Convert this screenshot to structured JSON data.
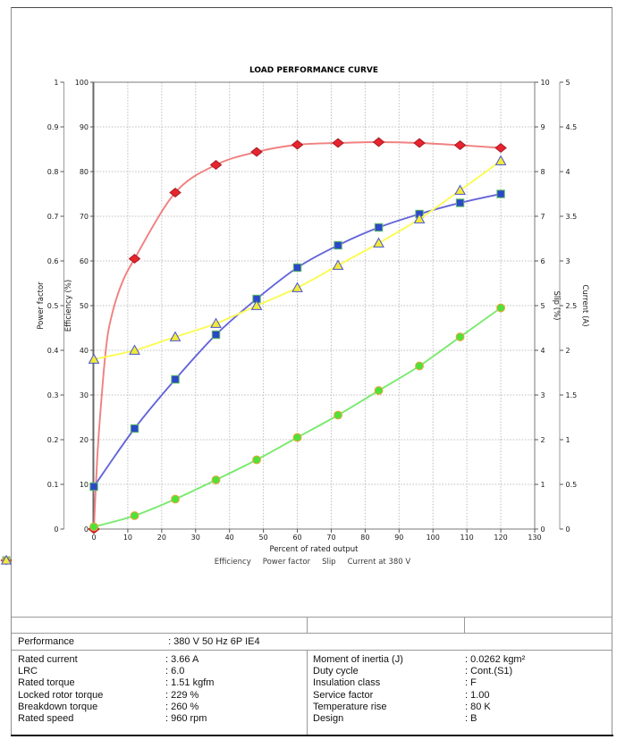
{
  "chart_data": {
    "type": "line",
    "title": "LOAD PERFORMANCE CURVE",
    "xlabel": "Percent of rated output",
    "grid": true,
    "legend_position": "bottom",
    "x": [
      0,
      12,
      24,
      36,
      48,
      60,
      72,
      84,
      96,
      108,
      120
    ],
    "axes": {
      "x": {
        "range": [
          0,
          130
        ],
        "ticks": [
          "0",
          "10",
          "20",
          "30",
          "40",
          "50",
          "60",
          "70",
          "80",
          "90",
          "100",
          "110",
          "120",
          "130"
        ]
      },
      "power_factor": {
        "title": "Power factor",
        "range": [
          0,
          1
        ],
        "ticks": [
          "0",
          "0.1",
          "0.2",
          "0.3",
          "0.4",
          "0.5",
          "0.6",
          "0.7",
          "0.8",
          "0.9",
          "1"
        ]
      },
      "efficiency": {
        "title": "Efficiency (%)",
        "range": [
          0,
          100
        ],
        "ticks": [
          "0",
          "10",
          "20",
          "30",
          "40",
          "50",
          "60",
          "70",
          "80",
          "90",
          "100"
        ]
      },
      "slip": {
        "title": "Slip (%)",
        "range": [
          0,
          10
        ],
        "ticks": [
          "0",
          "1",
          "2",
          "3",
          "4",
          "5",
          "6",
          "7",
          "8",
          "9",
          "10"
        ]
      },
      "current": {
        "title": "Current (A)",
        "range": [
          0,
          5
        ],
        "ticks": [
          "0",
          "0.5",
          "1",
          "1.5",
          "2",
          "2.5",
          "3",
          "3.5",
          "4",
          "4.5",
          "5"
        ]
      }
    },
    "series": [
      {
        "name": "Efficiency",
        "axis": "efficiency",
        "marker": "diamond",
        "line_color": "#ef7272",
        "line_opacity": 0.9,
        "marker_fill": "#e8242f",
        "marker_edge": "#a81d26",
        "values": [
          0,
          60.5,
          75.3,
          81.5,
          84.4,
          86.0,
          86.4,
          86.6,
          86.4,
          85.9,
          85.3
        ],
        "line_extra": [
          [
            1,
            16
          ],
          [
            2,
            27
          ],
          [
            3.5,
            40
          ],
          [
            5,
            47
          ],
          [
            8,
            54.5
          ]
        ]
      },
      {
        "name": "Power factor",
        "axis": "power_factor",
        "marker": "square",
        "line_color": "#6565da",
        "line_opacity": 1,
        "marker_fill": "#2c47c8",
        "marker_edge": "#5dbb63",
        "values": [
          0.095,
          0.225,
          0.335,
          0.435,
          0.515,
          0.585,
          0.635,
          0.675,
          0.705,
          0.73,
          0.75
        ],
        "line_extra": []
      },
      {
        "name": "Slip",
        "axis": "slip",
        "marker": "circle",
        "line_color": "#79ea6e",
        "line_opacity": 1,
        "marker_fill": "#4ce339",
        "marker_edge": "#f0a13a",
        "values": [
          0.05,
          0.3,
          0.67,
          1.1,
          1.55,
          2.05,
          2.55,
          3.1,
          3.65,
          4.3,
          4.95
        ],
        "line_extra": []
      },
      {
        "name": "Current at 380 V",
        "axis": "current",
        "marker": "triangle",
        "line_color": "#fbfb52",
        "line_opacity": 1,
        "marker_fill": "#f3ea39",
        "marker_edge": "#4753d2",
        "values": [
          1.9,
          2.0,
          2.15,
          2.3,
          2.5,
          2.7,
          2.95,
          3.2,
          3.47,
          3.79,
          4.12
        ],
        "line_extra": []
      }
    ]
  },
  "table": {
    "performance_label": "Performance",
    "performance_value": ": 380 V 50 Hz 6P IE4",
    "left_rows": [
      {
        "label": "Rated current",
        "value": ": 3.66 A"
      },
      {
        "label": "LRC",
        "value": ": 6.0"
      },
      {
        "label": "Rated torque",
        "value": ": 1.51 kgfm"
      },
      {
        "label": "Locked rotor torque",
        "value": ": 229 %"
      },
      {
        "label": "Breakdown torque",
        "value": ": 260 %"
      },
      {
        "label": "Rated speed",
        "value": ": 960 rpm"
      }
    ],
    "right_rows": [
      {
        "label": "Moment of inertia (J)",
        "value": ": 0.0262 kgm²"
      },
      {
        "label": "Duty cycle",
        "value": ": Cont.(S1)"
      },
      {
        "label": "Insulation class",
        "value": ": F"
      },
      {
        "label": "Service factor",
        "value": ": 1.00"
      },
      {
        "label": "Temperature rise",
        "value": ": 80 K"
      },
      {
        "label": "Design",
        "value": ": B"
      }
    ]
  },
  "colors": {
    "grid": "#bdbdbd",
    "plot_border": "#7a7a7a",
    "tick": "#555555"
  }
}
